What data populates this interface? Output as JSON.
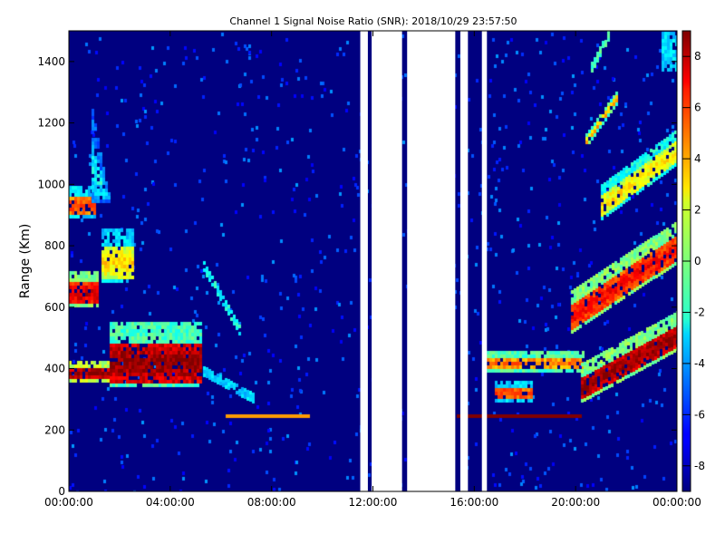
{
  "chart_data": {
    "type": "heatmap",
    "title": "Channel 1 Signal Noise Ratio (SNR): 2018/10/29 23:57:50",
    "xlabel": "",
    "ylabel": "Range (Km)",
    "x_ticks": [
      "00:00:00",
      "04:00:00",
      "08:00:00",
      "12:00:00",
      "16:00:00",
      "20:00:00",
      "00:00:00"
    ],
    "x_range_hours": [
      0,
      24
    ],
    "y_ticks": [
      0,
      200,
      400,
      600,
      800,
      1000,
      1200,
      1400
    ],
    "ylim": [
      0,
      1500
    ],
    "colorbar": {
      "colormap": "jet",
      "range": [
        -9,
        9
      ],
      "ticks": [
        -8,
        -6,
        -4,
        -2,
        0,
        2,
        4,
        6,
        8
      ]
    },
    "background_value": -9,
    "missing_data_hours": [
      [
        11.5,
        11.8
      ],
      [
        11.95,
        13.15
      ],
      [
        13.35,
        15.25
      ],
      [
        15.45,
        15.75
      ],
      [
        16.3,
        16.5
      ]
    ],
    "features": [
      {
        "shape": "band",
        "t0": 0.0,
        "t1": 1.0,
        "r0": 900,
        "r1": 1000,
        "v": -3,
        "core": 6
      },
      {
        "shape": "plume",
        "t0": 0.9,
        "t1": 1.6,
        "r0": 950,
        "r1": 1250,
        "v": -5,
        "core": -2
      },
      {
        "shape": "blob",
        "t0": 0.0,
        "t1": 1.1,
        "r0": 610,
        "r1": 720,
        "v": 0,
        "core": 8
      },
      {
        "shape": "blob",
        "t0": 1.3,
        "t1": 2.5,
        "r0": 690,
        "r1": 860,
        "v": -3,
        "core": 3
      },
      {
        "shape": "blob",
        "t0": 0.0,
        "t1": 1.6,
        "r0": 365,
        "r1": 430,
        "v": 1,
        "core": 9
      },
      {
        "shape": "blob",
        "t0": 1.6,
        "t1": 5.2,
        "r0": 350,
        "r1": 560,
        "v": -1,
        "core": 9
      },
      {
        "shape": "diag",
        "t0": 5.3,
        "t1": 6.8,
        "r0": 740,
        "r1": 520,
        "v": -2
      },
      {
        "shape": "diag",
        "t0": 5.3,
        "t1": 7.3,
        "r0": 400,
        "r1": 310,
        "v": -3
      },
      {
        "shape": "line",
        "t0": 6.2,
        "t1": 9.5,
        "r0": 250,
        "r1": 256,
        "v": 4
      },
      {
        "shape": "line",
        "t0": 15.3,
        "t1": 20.2,
        "r0": 250,
        "r1": 256,
        "v": 9
      },
      {
        "shape": "blob",
        "t0": 16.5,
        "t1": 20.3,
        "r0": 400,
        "r1": 470,
        "v": -1,
        "core": 5
      },
      {
        "shape": "blob",
        "t0": 16.8,
        "t1": 18.2,
        "r0": 300,
        "r1": 370,
        "v": -3,
        "core": 6
      },
      {
        "shape": "diag",
        "t0": 20.2,
        "t1": 24.0,
        "r0": 360,
        "r1": 530,
        "w": 120,
        "v": 0,
        "core": 9
      },
      {
        "shape": "diag",
        "t0": 19.8,
        "t1": 24.0,
        "r0": 590,
        "r1": 820,
        "w": 130,
        "v": 0,
        "core": 7
      },
      {
        "shape": "diag",
        "t0": 21.0,
        "t1": 24.0,
        "r0": 950,
        "r1": 1130,
        "w": 110,
        "v": -2,
        "core": 3
      },
      {
        "shape": "diag",
        "t0": 20.4,
        "t1": 21.6,
        "r0": 1150,
        "r1": 1290,
        "w": 40,
        "v": -1,
        "core": 4
      },
      {
        "shape": "diag",
        "t0": 20.6,
        "t1": 21.3,
        "r0": 1390,
        "r1": 1500,
        "w": 30,
        "v": -1
      },
      {
        "shape": "blob",
        "t0": 23.4,
        "t1": 24.0,
        "r0": 1380,
        "r1": 1500,
        "v": -3
      }
    ]
  }
}
